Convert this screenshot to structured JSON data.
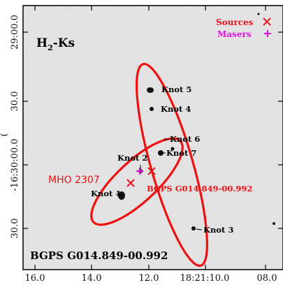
{
  "panel_title": {
    "main": "H",
    "sub": "2",
    "rest": "-Ks"
  },
  "legend": {
    "sources_label": "Sources",
    "sources_symbol": "×",
    "sources_color": "#e8141c",
    "masers_label": "Masers",
    "masers_symbol": "+",
    "masers_color": "#e010e0"
  },
  "y_ticks": [
    {
      "label": "29:00.0"
    },
    {
      "label": "30.0"
    },
    {
      "label": "-16:30:00.0"
    },
    {
      "label": "30.0"
    }
  ],
  "y_axis_partial": "(",
  "x_ticks": [
    {
      "label": "16.0"
    },
    {
      "label": "14.0"
    },
    {
      "label": "12.0"
    },
    {
      "label": "18:21:10.0"
    },
    {
      "label": "08.0"
    }
  ],
  "knots": [
    {
      "label": "Knot 5"
    },
    {
      "label": "Knot 4"
    },
    {
      "label": "Knot 6"
    },
    {
      "label": "Knot 7"
    },
    {
      "label": "Knot 2"
    },
    {
      "label": "Knot 1"
    },
    {
      "label": "Knot 3"
    }
  ],
  "mho_label": "MHO 2307",
  "source_label": "BGPS G014.849-00.992",
  "field_label": "BGPS G014.849-00.992",
  "ellipse_color": "#ee1111"
}
